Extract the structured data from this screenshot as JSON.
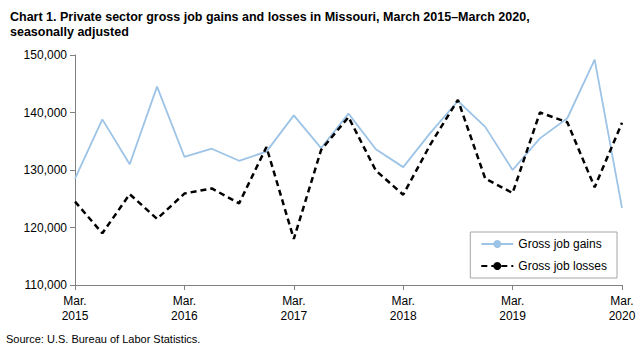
{
  "chart_data": {
    "type": "line",
    "title": "Chart 1. Private sector gross job gains and losses in Missouri, March 2015–March 2020, seasonally adjusted",
    "annotations": [
      "Source: U.S. Bureau of Labor Statistics."
    ],
    "categories": [
      "Mar.\n2015",
      null,
      null,
      null,
      "Mar.\n2016",
      null,
      null,
      null,
      "Mar.\n2017",
      null,
      null,
      null,
      "Mar.\n2018",
      null,
      null,
      null,
      "Mar.\n2019",
      null,
      null,
      null,
      "Mar.\n2020"
    ],
    "series": [
      {
        "name": "Gross job gains",
        "color": "#9dc3e6",
        "line_style": "solid",
        "marker": "none",
        "values": [
          128500,
          138800,
          131000,
          144500,
          132300,
          133700,
          131600,
          133200,
          139500,
          133800,
          139800,
          133600,
          130500,
          136500,
          142000,
          137500,
          130000,
          135500,
          139000,
          149200,
          123400
        ]
      },
      {
        "name": "Gross job losses",
        "color": "#000000",
        "line_style": "dashed",
        "marker": "none",
        "values": [
          124500,
          119000,
          125800,
          121500,
          125900,
          126800,
          124200,
          134000,
          118000,
          133500,
          139200,
          129900,
          125700,
          134500,
          142200,
          128500,
          126000,
          140000,
          138300,
          127000,
          138200
        ]
      }
    ],
    "ylim": [
      110000,
      150000
    ],
    "yticks": [
      {
        "value": 110000,
        "label": "110,000"
      },
      {
        "value": 120000,
        "label": "120,000"
      },
      {
        "value": 130000,
        "label": "130,000"
      },
      {
        "value": 140000,
        "label": "140,000"
      },
      {
        "value": 150000,
        "label": "150,000"
      }
    ],
    "grid": false,
    "legend": "lower right"
  }
}
